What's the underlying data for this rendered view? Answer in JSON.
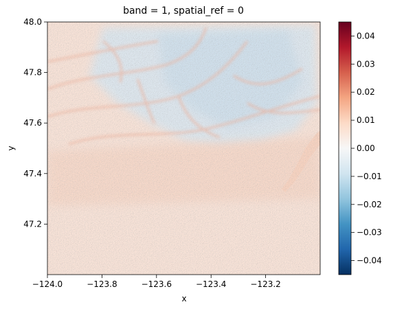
{
  "chart_data": {
    "type": "heatmap",
    "title": "band = 1, spatial_ref = 0",
    "xlabel": "x",
    "ylabel": "y",
    "xlim": [
      -124.0,
      -123.0
    ],
    "ylim": [
      47.0,
      48.0
    ],
    "x_ticks": [
      -124.0,
      -123.8,
      -123.6,
      -123.4,
      -123.2
    ],
    "x_tick_labels": [
      "−124.0",
      "−123.8",
      "−123.6",
      "−123.4",
      "−123.2"
    ],
    "y_ticks": [
      47.2,
      47.4,
      47.6,
      47.8,
      48.0
    ],
    "y_tick_labels": [
      "47.2",
      "47.4",
      "47.6",
      "47.8",
      "48.0"
    ],
    "colormap": "RdBu_r",
    "colorbar": {
      "vmin": -0.045,
      "vmax": 0.045,
      "ticks": [
        0.04,
        0.03,
        0.02,
        0.01,
        0.0,
        -0.01,
        -0.02,
        -0.03,
        -0.04
      ],
      "tick_labels": [
        "0.04",
        "0.03",
        "0.02",
        "0.01",
        "0.00",
        "−0.01",
        "−0.02",
        "−0.03",
        "−0.04"
      ],
      "colors": [
        "#053061",
        "#2166ac",
        "#4393c3",
        "#92c5de",
        "#d1e5f0",
        "#f7f7f7",
        "#fddbc7",
        "#f4a582",
        "#d6604d",
        "#b2182b",
        "#67001f"
      ]
    },
    "grid": false
  }
}
